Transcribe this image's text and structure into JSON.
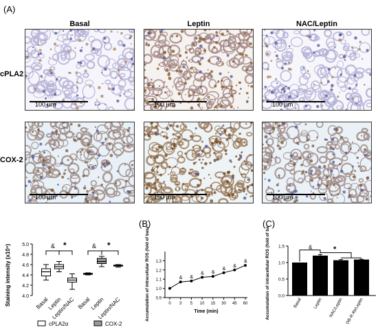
{
  "figure": {
    "panel_A": "(A)",
    "panel_B": "(B)",
    "panel_C": "(C)",
    "columns": [
      "Basal",
      "Leptin",
      "NAC/Leptin"
    ],
    "rows": [
      "cPLA2",
      "COX-2"
    ],
    "scale_label": "100 μm"
  },
  "micrographs": [
    {
      "row": "cPLA2",
      "col": "Basal",
      "stain": "light",
      "bg": "#f6f5fb",
      "tissue": "#b6b3d6",
      "brown": "#b08a66"
    },
    {
      "row": "cPLA2",
      "col": "Leptin",
      "stain": "heavy",
      "bg": "#f5f2f0",
      "tissue": "#a58a86",
      "brown": "#8a5a2e"
    },
    {
      "row": "cPLA2",
      "col": "NAC/Leptin",
      "stain": "light",
      "bg": "#f7f6fb",
      "tissue": "#b4b2d6",
      "brown": "#a88462"
    },
    {
      "row": "COX-2",
      "col": "Basal",
      "stain": "medium",
      "bg": "#e8f1f7",
      "tissue": "#9f8c86",
      "brown": "#7f5a3a"
    },
    {
      "row": "COX-2",
      "col": "Leptin",
      "stain": "heavy",
      "bg": "#eef3f5",
      "tissue": "#9c7d5d",
      "brown": "#6e4a28"
    },
    {
      "row": "COX-2",
      "col": "NAC/Leptin",
      "stain": "medium",
      "bg": "#eaf2f8",
      "tissue": "#a18d8a",
      "brown": "#7b5a3e"
    }
  ],
  "chart_data": [
    {
      "type": "box",
      "ylabel": "Staining intensity (x10⁵)",
      "ylim": [
        4.0,
        5.0
      ],
      "yticks": [
        "5.0",
        "4.8",
        "4.6",
        "4.4",
        "4.2",
        "4.0"
      ],
      "categories": [
        "Basal",
        "Leptin",
        "Leptin/NAC",
        "Basal",
        "Leptin",
        "Leptin/NAC"
      ],
      "legend": [
        "cPLA2α",
        "COX-2"
      ],
      "significance": [
        "&",
        "*",
        "&",
        "*"
      ],
      "series": [
        {
          "name": "cPLA2α",
          "fill": "#ffffff",
          "boxes": [
            {
              "min": 4.3,
              "q1": 4.38,
              "median": 4.46,
              "q3": 4.52,
              "max": 4.6
            },
            {
              "min": 4.46,
              "q1": 4.52,
              "median": 4.56,
              "q3": 4.6,
              "max": 4.66
            },
            {
              "min": 4.12,
              "q1": 4.26,
              "median": 4.3,
              "q3": 4.34,
              "max": 4.42
            }
          ]
        },
        {
          "name": "COX-2",
          "fill": "#9a9a9a",
          "boxes": [
            {
              "min": 4.4,
              "q1": 4.41,
              "median": 4.42,
              "q3": 4.43,
              "max": 4.44
            },
            {
              "min": 4.56,
              "q1": 4.62,
              "median": 4.66,
              "q3": 4.72,
              "max": 4.76
            },
            {
              "min": 4.55,
              "q1": 4.57,
              "median": 4.58,
              "q3": 4.59,
              "max": 4.6
            }
          ]
        }
      ]
    },
    {
      "type": "line",
      "ylabel": "Accumulation of intracellular ROS (fold of basal)",
      "xlabel": "Time (min)",
      "x": [
        "0",
        "3",
        "5",
        "10",
        "15",
        "30",
        "45",
        "60"
      ],
      "y": [
        1.0,
        1.07,
        1.08,
        1.12,
        1.13,
        1.17,
        1.2,
        1.25
      ],
      "ylim": [
        0.9,
        1.4
      ],
      "yticks": [
        "1.3",
        "1.2",
        "1.1",
        "1.0",
        "0.9"
      ],
      "annotations": [
        "&",
        "&",
        "&",
        "&",
        "&",
        "&",
        "&"
      ]
    },
    {
      "type": "bar",
      "ylabel": "Accumulation of intracellular ROS (fold of basal)",
      "categories": [
        "Basal",
        "Leptin",
        "NAC/Leptin",
        "OB-R Ab/Leptin"
      ],
      "values": [
        1.0,
        1.21,
        1.07,
        1.09
      ],
      "errors": [
        0.0,
        0.03,
        0.02,
        0.01
      ],
      "ylim": [
        0.0,
        1.5
      ],
      "yticks": [
        "1.5",
        "1.0",
        "0.5",
        "0.0"
      ],
      "significance": [
        "&",
        "*"
      ]
    }
  ]
}
